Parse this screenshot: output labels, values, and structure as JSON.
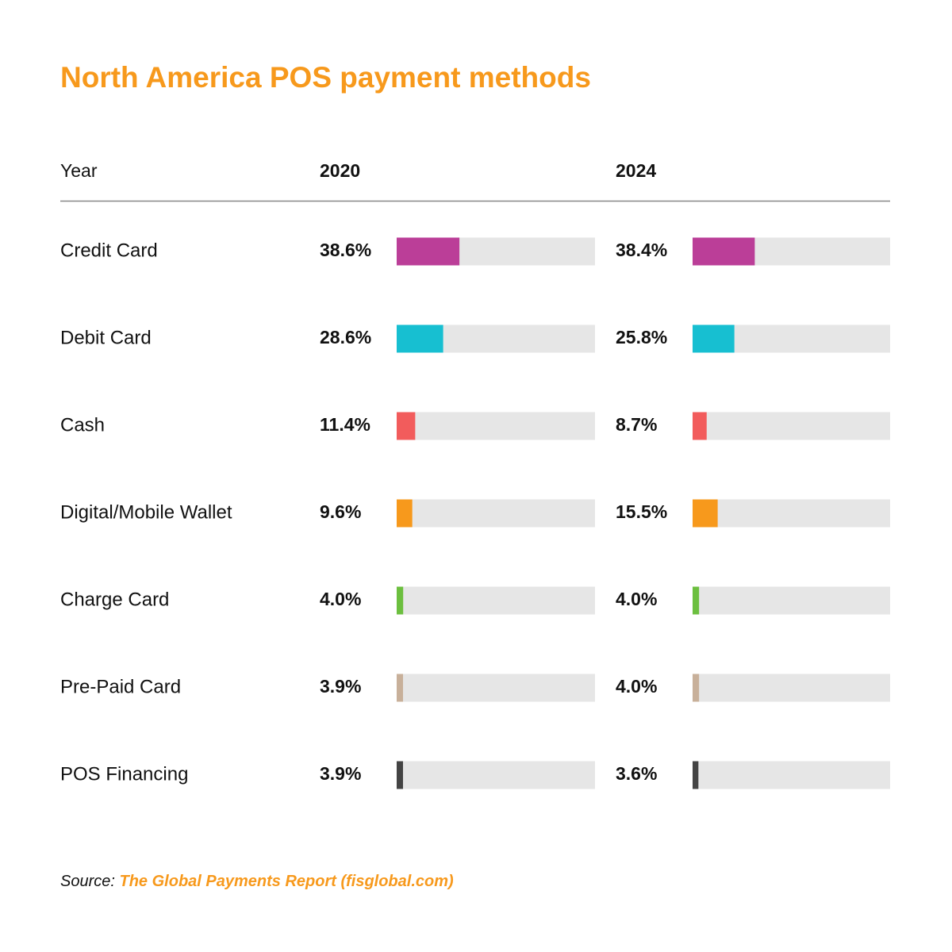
{
  "chart_data": {
    "type": "bar",
    "title": "North America POS payment methods",
    "category_header": "Year",
    "categories": [
      "Credit Card",
      "Debit Card",
      "Cash",
      "Digital/Mobile Wallet",
      "Charge Card",
      "Pre-Paid Card",
      "POS Financing"
    ],
    "colors": [
      "#bb3e98",
      "#17bfd1",
      "#f25c5c",
      "#f7991c",
      "#6cbf3f",
      "#c8b09a",
      "#444444"
    ],
    "track_color": "#e6e6e6",
    "highlight_index": 3,
    "highlight_color": "#f7991c",
    "xlim": [
      0,
      122
    ],
    "series": [
      {
        "name": "2020",
        "values": [
          38.6,
          28.6,
          11.4,
          9.6,
          4.0,
          3.9,
          3.9
        ],
        "value_labels": [
          "38.6%",
          "28.6%",
          "11.4%",
          "9.6%",
          "4.0%",
          "3.9%",
          "3.9%"
        ]
      },
      {
        "name": "2024",
        "values": [
          38.4,
          25.8,
          8.7,
          15.5,
          4.0,
          4.0,
          3.6
        ],
        "value_labels": [
          "38.4%",
          "25.8%",
          "8.7%",
          "15.5%",
          "4.0%",
          "4.0%",
          "3.6%"
        ]
      }
    ],
    "source_label": "Source:",
    "source_text": "The Global Payments Report (fisglobal.com)"
  }
}
